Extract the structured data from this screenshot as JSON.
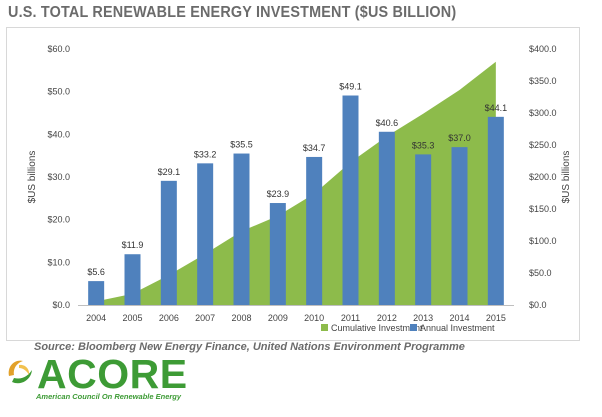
{
  "title": "U.S. TOTAL RENEWABLE ENERGY INVESTMENT ($US BILLION)",
  "source": "Source: Bloomberg New Energy Finance, United Nations Environment Programme",
  "logo": {
    "word": "ACORE",
    "tagline": "American Council On Renewable Energy"
  },
  "colors": {
    "bar": "#4f81bd",
    "area": "#8dbb4b",
    "title": "#6b6b6b",
    "logo": "#3d9b35"
  },
  "chart_data": {
    "type": "bar",
    "categories": [
      "2004",
      "2005",
      "2006",
      "2007",
      "2008",
      "2009",
      "2010",
      "2011",
      "2012",
      "2013",
      "2014",
      "2015"
    ],
    "series": [
      {
        "name": "Annual Investment",
        "type": "bar",
        "axis": "left",
        "values": [
          5.6,
          11.9,
          29.1,
          33.2,
          35.5,
          23.9,
          34.7,
          49.1,
          40.6,
          35.3,
          37.0,
          44.1
        ],
        "labels": [
          "$5.6",
          "$11.9",
          "$29.1",
          "$33.2",
          "$35.5",
          "$23.9",
          "$34.7",
          "$49.1",
          "$40.6",
          "$35.3",
          "$37.0",
          "$44.1"
        ]
      },
      {
        "name": "Cumulative Investment",
        "type": "area",
        "axis": "right",
        "values": [
          5.6,
          17.5,
          46.6,
          79.8,
          115.3,
          139.2,
          173.9,
          223.0,
          263.6,
          298.9,
          335.9,
          380.0
        ]
      }
    ],
    "ylabel": "$US billions",
    "ylabel_right": "$US billions",
    "ylim": [
      0,
      60
    ],
    "ylim_right": [
      0,
      400
    ],
    "yticks": [
      "$0.0",
      "$10.0",
      "$20.0",
      "$30.0",
      "$40.0",
      "$50.0",
      "$60.0"
    ],
    "yticks_right": [
      "$0.0",
      "$50.0",
      "$100.0",
      "$150.0",
      "$200.0",
      "$250.0",
      "$300.0",
      "$350.0",
      "$400.0"
    ],
    "grid": false,
    "legend_position": "bottom-right"
  }
}
